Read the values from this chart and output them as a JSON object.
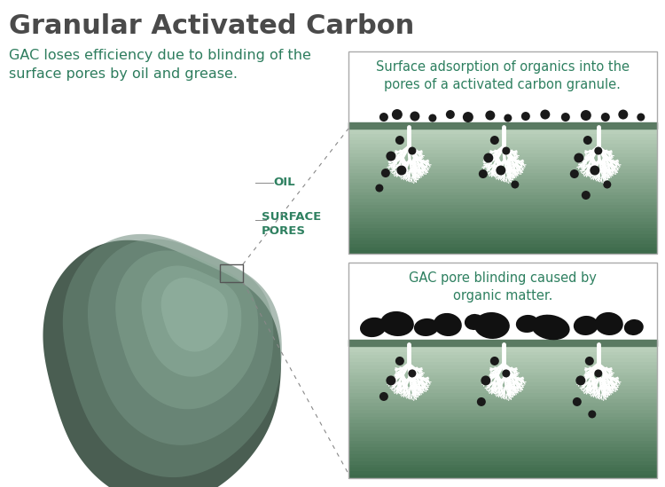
{
  "title": "Granular Activated Carbon",
  "subtitle": "GAC loses efficiency due to blinding of the\nsurface pores by oil and grease.",
  "title_color": "#4a4a4a",
  "subtitle_color": "#2e7d5e",
  "bg_color": "#ffffff",
  "box1_title": "Surface adsorption of organics into the\npores of a activated carbon granule.",
  "box2_title": "GAC pore blinding caused by\norganic matter.",
  "box_title_color": "#2e8060",
  "panel_top_color": "#ffffff",
  "panel_mid_color": "#c5d9c5",
  "panel_bot_color": "#3d6b50",
  "surface_line_color": "#5a8060",
  "label_oil": "OIL",
  "label_surface": "SURFACE\nPORES",
  "label_color": "#2e8060",
  "granule_dark": "#4a5e52",
  "granule_mid": "#7a9a88",
  "granule_light": "#9ab8a6",
  "dot_color": "#1a1a1a",
  "blob_color": "#111111"
}
